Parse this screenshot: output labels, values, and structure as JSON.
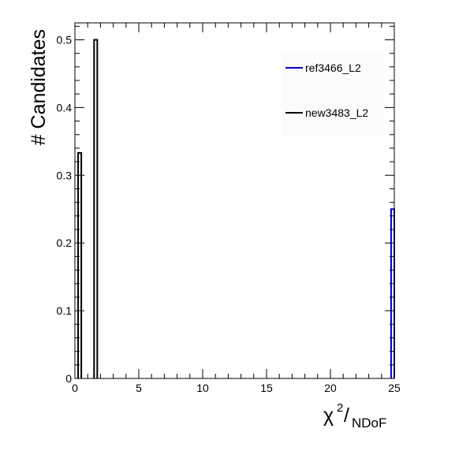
{
  "chart_data": {
    "type": "step-histogram",
    "xlabel_main": "χ",
    "xlabel_sup": "2",
    "xlabel_slash": "/",
    "xlabel_sub": "NDoF",
    "ylabel": "# Candidates",
    "xlim": [
      0,
      25
    ],
    "ylim": [
      0,
      0.525
    ],
    "x_ticks": [
      0,
      5,
      10,
      15,
      20,
      25
    ],
    "x_tick_labels": [
      "0",
      "5",
      "10",
      "15",
      "20",
      "25"
    ],
    "y_ticks": [
      0,
      0.1,
      0.2,
      0.3,
      0.4,
      0.5
    ],
    "y_tick_labels": [
      "0",
      "0.1",
      "0.2",
      "0.3",
      "0.4",
      "0.5"
    ],
    "grid": false,
    "legend_position": "top-right",
    "series": [
      {
        "name": "ref3466_L2",
        "color": "#0000cc",
        "bins": [
          {
            "x0": 24.75,
            "x1": 25.0,
            "y": 0.25
          }
        ]
      },
      {
        "name": "new3483_L2",
        "color": "#000000",
        "bins": [
          {
            "x0": 0.25,
            "x1": 0.5,
            "y": 0.333
          },
          {
            "x0": 1.5,
            "x1": 1.75,
            "y": 0.5
          }
        ]
      }
    ]
  }
}
